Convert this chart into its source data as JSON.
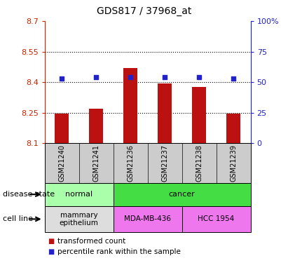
{
  "title": "GDS817 / 37968_at",
  "samples": [
    "GSM21240",
    "GSM21241",
    "GSM21236",
    "GSM21237",
    "GSM21238",
    "GSM21239"
  ],
  "bar_values": [
    8.245,
    8.27,
    8.47,
    8.395,
    8.375,
    8.245
  ],
  "percentile_values": [
    53,
    54,
    54,
    54,
    54,
    53
  ],
  "bar_color": "#bb1111",
  "dot_color": "#2222cc",
  "ylim_left": [
    8.1,
    8.7
  ],
  "ylim_right": [
    0,
    100
  ],
  "yticks_left": [
    8.1,
    8.25,
    8.4,
    8.55,
    8.7
  ],
  "ytick_labels_left": [
    "8.1",
    "8.25",
    "8.4",
    "8.55",
    "8.7"
  ],
  "yticks_right": [
    0,
    25,
    50,
    75,
    100
  ],
  "ytick_labels_right": [
    "0",
    "25",
    "50",
    "75",
    "100%"
  ],
  "hgrid_values": [
    8.25,
    8.4,
    8.55
  ],
  "disease_state_groups": [
    {
      "label": "normal",
      "cols": [
        0,
        1
      ],
      "color": "#aaffaa"
    },
    {
      "label": "cancer",
      "cols": [
        2,
        3,
        4,
        5
      ],
      "color": "#44dd44"
    }
  ],
  "cell_line_groups": [
    {
      "label": "mammary\nepithelium",
      "cols": [
        0,
        1
      ],
      "color": "#dddddd"
    },
    {
      "label": "MDA-MB-436",
      "cols": [
        2,
        3
      ],
      "color": "#ee77ee"
    },
    {
      "label": "HCC 1954",
      "cols": [
        4,
        5
      ],
      "color": "#ee77ee"
    }
  ],
  "legend_bar_label": "transformed count",
  "legend_dot_label": "percentile rank within the sample",
  "disease_label": "disease state",
  "cell_line_label": "cell line",
  "left_axis_color": "#cc2200",
  "right_axis_color": "#2222cc",
  "bg_color": "#ffffff",
  "plot_bg_color": "#ffffff",
  "sample_bg_color": "#cccccc"
}
